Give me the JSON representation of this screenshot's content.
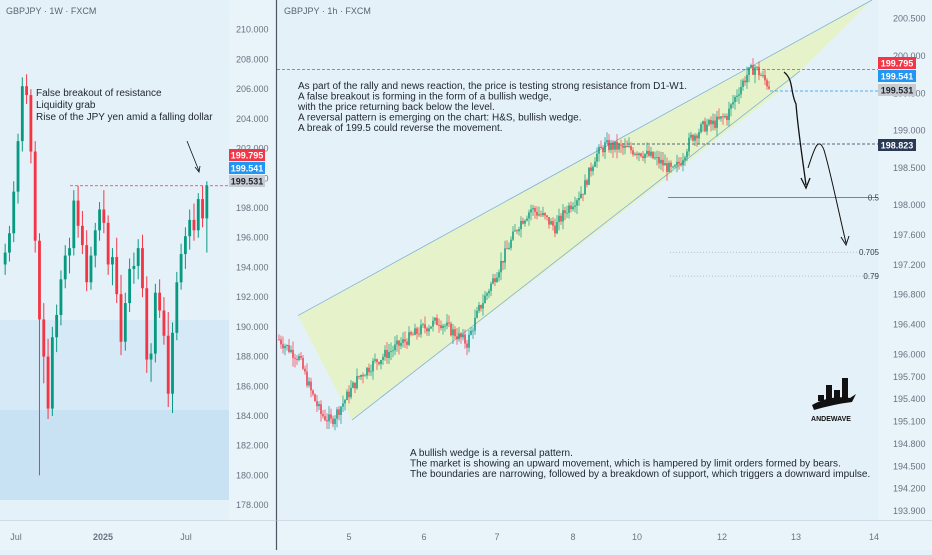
{
  "panels": [
    {
      "symbol": "GBPJPY · 1W · FXCM",
      "chart_data_ref": 0
    },
    {
      "symbol": "GBPJPY · 1h · FXCM",
      "chart_data_ref": 1
    }
  ],
  "chart_data": [
    {
      "type": "candlestick",
      "timeframe": "1W",
      "ylim": [
        177,
        212
      ],
      "y_ticks": [
        "210.000",
        "208.000",
        "206.000",
        "204.000",
        "202.000",
        "200.000",
        "198.000",
        "196.000",
        "194.000",
        "192.000",
        "190.000",
        "188.000",
        "186.000",
        "184.000",
        "182.000",
        "180.000",
        "178.000"
      ],
      "x_labels": [
        "Jul",
        "2025",
        "Jul"
      ],
      "price_tags": [
        {
          "value": "199.795",
          "color": "#f23645"
        },
        {
          "value": "199.541",
          "color": "#2196f3"
        },
        {
          "value": "199.531",
          "color": "#c7ccd3"
        }
      ],
      "resistance_level": 199.5,
      "annotations": [
        "False breakout of resistance",
        "Liquidity grab",
        "Rise of the JPY yen amid a falling dollar"
      ],
      "candles": [
        [
          194.2,
          195.6,
          193.5,
          195.0
        ],
        [
          195.0,
          196.8,
          194.4,
          196.3
        ],
        [
          196.3,
          199.8,
          195.7,
          199.1
        ],
        [
          199.1,
          203.0,
          198.3,
          202.5
        ],
        [
          202.5,
          206.8,
          201.8,
          206.2
        ],
        [
          206.2,
          207.0,
          205.0,
          205.6
        ],
        [
          205.6,
          206.0,
          201.0,
          201.8
        ],
        [
          201.8,
          202.5,
          195.0,
          195.8
        ],
        [
          195.8,
          196.3,
          180.0,
          190.5
        ],
        [
          190.5,
          191.6,
          186.2,
          188.0
        ],
        [
          188.0,
          189.2,
          183.8,
          184.5
        ],
        [
          184.5,
          190.0,
          184.0,
          189.3
        ],
        [
          189.3,
          191.5,
          188.3,
          190.8
        ],
        [
          190.8,
          193.8,
          190.1,
          193.2
        ],
        [
          193.2,
          195.5,
          192.6,
          194.8
        ],
        [
          194.8,
          196.0,
          193.6,
          195.3
        ],
        [
          195.3,
          199.2,
          194.8,
          198.5
        ],
        [
          198.5,
          199.5,
          196.0,
          196.8
        ],
        [
          196.8,
          197.8,
          194.9,
          195.5
        ],
        [
          195.5,
          196.5,
          192.4,
          193.0
        ],
        [
          193.0,
          195.4,
          192.5,
          194.8
        ],
        [
          194.8,
          197.0,
          194.0,
          196.5
        ],
        [
          196.5,
          198.4,
          195.8,
          197.9
        ],
        [
          197.9,
          199.2,
          196.3,
          197.0
        ],
        [
          197.0,
          197.5,
          193.5,
          194.2
        ],
        [
          194.2,
          195.3,
          192.8,
          194.7
        ],
        [
          194.7,
          196.0,
          191.6,
          192.2
        ],
        [
          192.2,
          193.5,
          188.1,
          189.0
        ],
        [
          189.0,
          192.3,
          188.4,
          191.6
        ],
        [
          191.6,
          194.6,
          191.0,
          193.9
        ],
        [
          193.9,
          195.0,
          192.9,
          194.1
        ],
        [
          194.1,
          195.9,
          193.2,
          195.3
        ],
        [
          195.3,
          196.2,
          192.0,
          192.6
        ],
        [
          192.6,
          193.4,
          186.9,
          187.8
        ],
        [
          187.8,
          188.9,
          186.3,
          188.2
        ],
        [
          188.2,
          192.9,
          187.6,
          192.3
        ],
        [
          192.3,
          193.2,
          190.6,
          191.1
        ],
        [
          191.1,
          192.0,
          188.8,
          189.4
        ],
        [
          189.4,
          191.0,
          184.6,
          185.5
        ],
        [
          185.5,
          190.3,
          184.2,
          189.6
        ],
        [
          189.6,
          193.7,
          189.1,
          193.0
        ],
        [
          193.0,
          195.6,
          192.5,
          194.9
        ],
        [
          194.9,
          196.7,
          193.9,
          196.1
        ],
        [
          196.1,
          197.9,
          195.2,
          197.2
        ],
        [
          197.2,
          198.3,
          195.8,
          196.5
        ],
        [
          196.5,
          199.0,
          196.0,
          198.6
        ],
        [
          198.6,
          199.5,
          196.7,
          197.3
        ],
        [
          197.3,
          199.8,
          195.0,
          199.5
        ]
      ]
    },
    {
      "type": "candlestick",
      "timeframe": "1h",
      "ylim": [
        193.78,
        200.75
      ],
      "y_ticks": [
        "200.500",
        "200.000",
        "199.500",
        "199.000",
        "198.500",
        "198.000",
        "197.600",
        "197.200",
        "196.800",
        "196.400",
        "196.000",
        "195.700",
        "195.400",
        "195.100",
        "194.800",
        "194.500",
        "194.200",
        "193.900"
      ],
      "x_labels": [
        "5",
        "6",
        "7",
        "8",
        "10",
        "12",
        "13",
        "14"
      ],
      "price_tags": [
        {
          "value": "199.795",
          "color": "#f23645"
        },
        {
          "value": "199.541",
          "color": "#2196f3"
        },
        {
          "value": "199.531",
          "color": "#c7ccd3"
        },
        {
          "value": "198.823",
          "color": "#2a3a55"
        }
      ],
      "levels": [
        {
          "name": "resistance",
          "value": 199.82
        },
        {
          "name": "support",
          "value": 199.53
        },
        {
          "name": "wedge-breakout",
          "value": 198.82
        }
      ],
      "fib_levels": [
        {
          "label": "0.5",
          "value": 198.1
        },
        {
          "label": "0.705",
          "value": 197.37
        },
        {
          "label": "0.79",
          "value": 197.05
        }
      ],
      "wedge": {
        "upper": [
          [
            195.78,
            196.52
          ],
          [
            200.75,
            200.75
          ]
        ],
        "lower": [
          [
            193.99,
            195.12
          ],
          [
            199.5,
            199.53
          ]
        ]
      },
      "close_path": [
        [
          0,
          196.2
        ],
        [
          10,
          195.95
        ],
        [
          16,
          195.5
        ],
        [
          21,
          195.2
        ],
        [
          26,
          195.1
        ],
        [
          32,
          195.35
        ],
        [
          40,
          195.7
        ],
        [
          48,
          195.9
        ],
        [
          56,
          196.05
        ],
        [
          64,
          196.2
        ],
        [
          72,
          196.35
        ],
        [
          80,
          196.45
        ],
        [
          87,
          196.3
        ],
        [
          94,
          196.15
        ],
        [
          100,
          196.6
        ],
        [
          108,
          197.05
        ],
        [
          114,
          197.4
        ],
        [
          120,
          197.75
        ],
        [
          126,
          197.95
        ],
        [
          132,
          197.85
        ],
        [
          138,
          197.7
        ],
        [
          144,
          197.95
        ],
        [
          152,
          198.2
        ],
        [
          158,
          198.65
        ],
        [
          163,
          198.8
        ],
        [
          168,
          198.78
        ],
        [
          174,
          198.75
        ],
        [
          180,
          198.72
        ],
        [
          186,
          198.65
        ],
        [
          192,
          198.55
        ],
        [
          197,
          198.45
        ],
        [
          201,
          198.6
        ],
        [
          206,
          198.9
        ],
        [
          212,
          199.05
        ],
        [
          218,
          199.1
        ],
        [
          224,
          199.2
        ],
        [
          229,
          199.5
        ],
        [
          234,
          199.75
        ],
        [
          238,
          199.85
        ],
        [
          242,
          199.7
        ],
        [
          245,
          199.6
        ]
      ],
      "text_blocks": [
        [
          "As part of the rally and news reaction, the price is testing strong resistance from D1-W1.",
          "A false breakout is forming in the form of a bullish wedge,",
          "with the price returning back below the level.",
          "A reversal pattern is emerging on the chart: H&S, bullish wedge.",
          "A break of 199.5 could reverse the movement."
        ],
        [
          "A bullish wedge is a reversal pattern.",
          "The market is showing an upward movement, which is hampered by limit orders formed by bears.",
          "The boundaries are narrowing, followed by a breakdown of support, which triggers a downward impulse."
        ]
      ]
    }
  ],
  "logo": {
    "text": "ANDEWAVE"
  },
  "colors": {
    "up": "#089981",
    "down": "#f23645",
    "background": "#e5f1f9",
    "wedge_fill": "#e6f3c4"
  }
}
